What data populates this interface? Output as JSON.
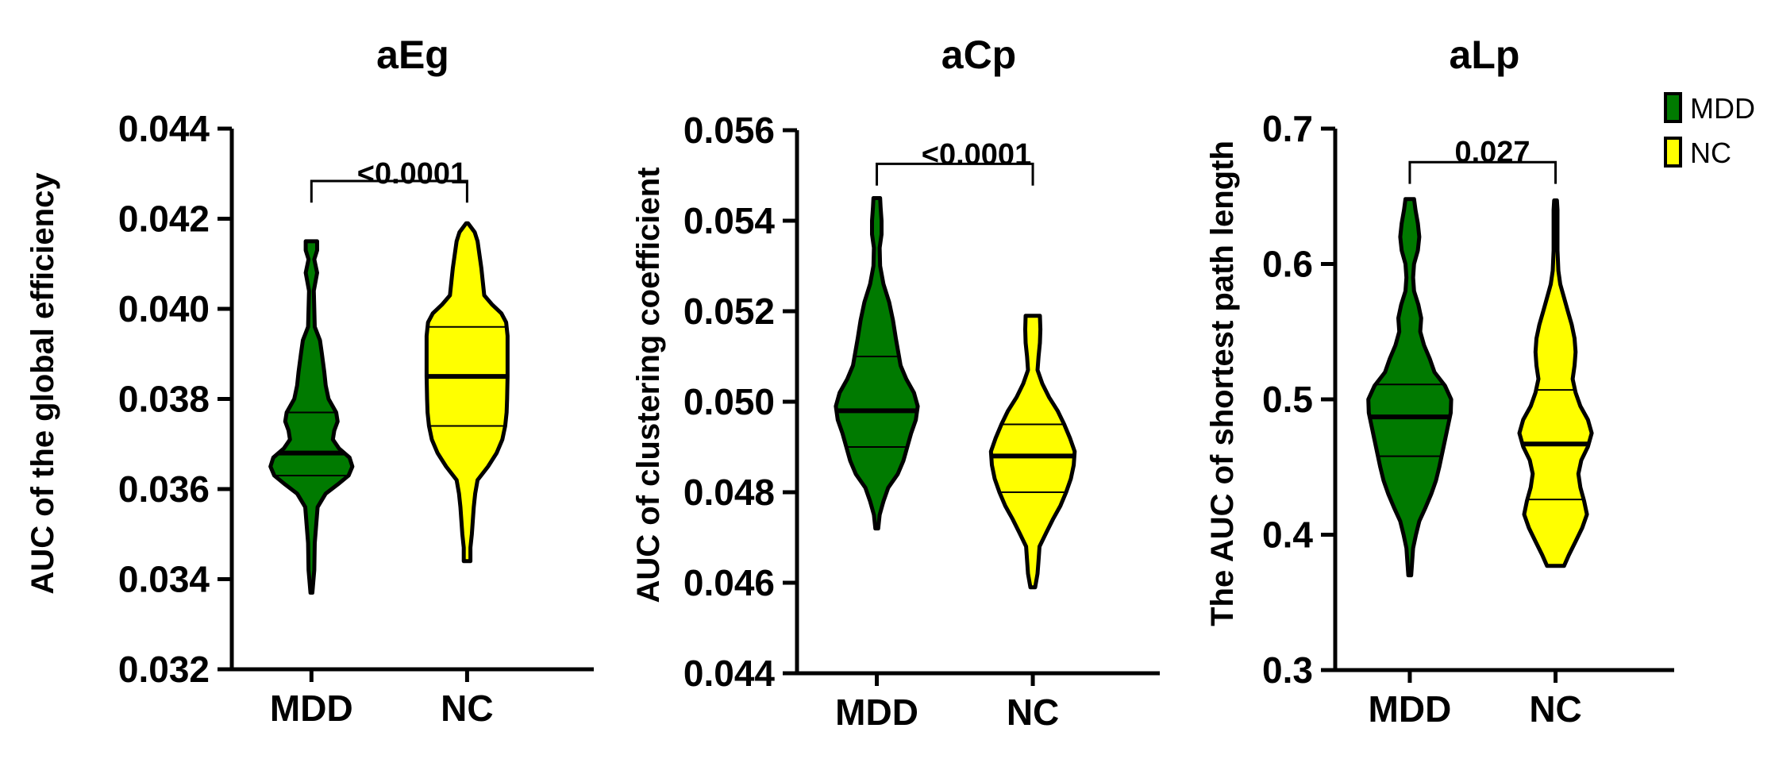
{
  "legend": [
    {
      "label": "MDD",
      "color": "#007a00"
    },
    {
      "label": "NC",
      "color": "#ffff00"
    }
  ],
  "chart_data": [
    {
      "type": "violin",
      "title": "aEg",
      "ylabel": "AUC of the global efficiency",
      "ylim": [
        0.032,
        0.044
      ],
      "yticks": [
        "0.032",
        "0.034",
        "0.036",
        "0.038",
        "0.040",
        "0.042",
        "0.044"
      ],
      "categories": [
        "MDD",
        "NC"
      ],
      "pvalue": "<0.0001",
      "series": [
        {
          "name": "MDD",
          "color": "#007a00",
          "min": 0.0337,
          "max": 0.0415,
          "median": 0.0368,
          "q1": 0.0363,
          "q3": 0.0377,
          "density": [
            [
              0.0337,
              0.02
            ],
            [
              0.0342,
              0.06
            ],
            [
              0.0348,
              0.07
            ],
            [
              0.0352,
              0.1
            ],
            [
              0.0356,
              0.13
            ],
            [
              0.0359,
              0.3
            ],
            [
              0.0361,
              0.55
            ],
            [
              0.0363,
              0.78
            ],
            [
              0.0365,
              0.86
            ],
            [
              0.0367,
              0.8
            ],
            [
              0.0369,
              0.58
            ],
            [
              0.0371,
              0.45
            ],
            [
              0.0373,
              0.48
            ],
            [
              0.0375,
              0.55
            ],
            [
              0.0377,
              0.52
            ],
            [
              0.038,
              0.36
            ],
            [
              0.0383,
              0.3
            ],
            [
              0.0386,
              0.27
            ],
            [
              0.039,
              0.22
            ],
            [
              0.0393,
              0.18
            ],
            [
              0.0396,
              0.07
            ],
            [
              0.04,
              0.06
            ],
            [
              0.0404,
              0.05
            ],
            [
              0.0408,
              0.12
            ],
            [
              0.0411,
              0.06
            ],
            [
              0.0413,
              0.12
            ],
            [
              0.0415,
              0.12
            ]
          ]
        },
        {
          "name": "NC",
          "color": "#ffff00",
          "min": 0.0344,
          "max": 0.0419,
          "median": 0.0385,
          "q1": 0.0374,
          "q3": 0.0396,
          "density": [
            [
              0.0344,
              0.07
            ],
            [
              0.0347,
              0.07
            ],
            [
              0.035,
              0.1
            ],
            [
              0.0353,
              0.12
            ],
            [
              0.0356,
              0.14
            ],
            [
              0.0359,
              0.17
            ],
            [
              0.0362,
              0.22
            ],
            [
              0.0365,
              0.44
            ],
            [
              0.0368,
              0.62
            ],
            [
              0.0371,
              0.74
            ],
            [
              0.0374,
              0.8
            ],
            [
              0.0377,
              0.83
            ],
            [
              0.038,
              0.84
            ],
            [
              0.0385,
              0.85
            ],
            [
              0.039,
              0.85
            ],
            [
              0.0394,
              0.85
            ],
            [
              0.0397,
              0.82
            ],
            [
              0.0399,
              0.72
            ],
            [
              0.0401,
              0.52
            ],
            [
              0.0403,
              0.36
            ],
            [
              0.0406,
              0.33
            ],
            [
              0.0409,
              0.3
            ],
            [
              0.0412,
              0.26
            ],
            [
              0.0415,
              0.22
            ],
            [
              0.0417,
              0.16
            ],
            [
              0.0419,
              0.02
            ]
          ]
        }
      ]
    },
    {
      "type": "violin",
      "title": "aCp",
      "ylabel": "AUC of  clustering coefficient",
      "ylim": [
        0.044,
        0.056
      ],
      "yticks": [
        "0.044",
        "0.046",
        "0.048",
        "0.050",
        "0.052",
        "0.054",
        "0.056"
      ],
      "categories": [
        "MDD",
        "NC"
      ],
      "pvalue": "<0.0001",
      "series": [
        {
          "name": "MDD",
          "color": "#007a00",
          "min": 0.0472,
          "max": 0.0545,
          "median": 0.0498,
          "q1": 0.049,
          "q3": 0.051,
          "density": [
            [
              0.0472,
              0.03
            ],
            [
              0.0475,
              0.06
            ],
            [
              0.0478,
              0.14
            ],
            [
              0.0481,
              0.24
            ],
            [
              0.0484,
              0.44
            ],
            [
              0.0487,
              0.56
            ],
            [
              0.049,
              0.64
            ],
            [
              0.0493,
              0.72
            ],
            [
              0.0496,
              0.82
            ],
            [
              0.0499,
              0.86
            ],
            [
              0.0502,
              0.78
            ],
            [
              0.0505,
              0.62
            ],
            [
              0.0508,
              0.5
            ],
            [
              0.0511,
              0.45
            ],
            [
              0.0514,
              0.4
            ],
            [
              0.0518,
              0.34
            ],
            [
              0.0522,
              0.26
            ],
            [
              0.0526,
              0.14
            ],
            [
              0.053,
              0.07
            ],
            [
              0.0534,
              0.06
            ],
            [
              0.0537,
              0.1
            ],
            [
              0.054,
              0.1
            ],
            [
              0.0543,
              0.08
            ],
            [
              0.0545,
              0.07
            ]
          ]
        },
        {
          "name": "NC",
          "color": "#ffff00",
          "min": 0.0459,
          "max": 0.0519,
          "median": 0.0488,
          "q1": 0.048,
          "q3": 0.0495,
          "density": [
            [
              0.0459,
              0.05
            ],
            [
              0.0462,
              0.1
            ],
            [
              0.0465,
              0.12
            ],
            [
              0.0468,
              0.14
            ],
            [
              0.0471,
              0.28
            ],
            [
              0.0474,
              0.42
            ],
            [
              0.0477,
              0.58
            ],
            [
              0.048,
              0.7
            ],
            [
              0.0483,
              0.8
            ],
            [
              0.0486,
              0.86
            ],
            [
              0.0489,
              0.88
            ],
            [
              0.0492,
              0.78
            ],
            [
              0.0495,
              0.66
            ],
            [
              0.0498,
              0.52
            ],
            [
              0.0501,
              0.34
            ],
            [
              0.0504,
              0.2
            ],
            [
              0.0507,
              0.1
            ],
            [
              0.051,
              0.12
            ],
            [
              0.0513,
              0.15
            ],
            [
              0.0516,
              0.16
            ],
            [
              0.0519,
              0.15
            ]
          ]
        }
      ]
    },
    {
      "type": "violin",
      "title": "aLp",
      "ylabel": "The AUC of shortest path length",
      "ylim": [
        0.3,
        0.7
      ],
      "yticks": [
        "0.3",
        "0.4",
        "0.5",
        "0.6",
        "0.7"
      ],
      "categories": [
        "MDD",
        "NC"
      ],
      "pvalue": "0.027",
      "series": [
        {
          "name": "MDD",
          "color": "#007a00",
          "min": 0.37,
          "max": 0.648,
          "median": 0.487,
          "q1": 0.458,
          "q3": 0.511,
          "density": [
            [
              0.37,
              0.03
            ],
            [
              0.38,
              0.05
            ],
            [
              0.39,
              0.07
            ],
            [
              0.4,
              0.13
            ],
            [
              0.41,
              0.2
            ],
            [
              0.42,
              0.33
            ],
            [
              0.43,
              0.45
            ],
            [
              0.44,
              0.55
            ],
            [
              0.45,
              0.62
            ],
            [
              0.46,
              0.68
            ],
            [
              0.47,
              0.74
            ],
            [
              0.48,
              0.8
            ],
            [
              0.49,
              0.86
            ],
            [
              0.5,
              0.87
            ],
            [
              0.51,
              0.74
            ],
            [
              0.52,
              0.52
            ],
            [
              0.53,
              0.42
            ],
            [
              0.54,
              0.3
            ],
            [
              0.55,
              0.22
            ],
            [
              0.56,
              0.24
            ],
            [
              0.57,
              0.18
            ],
            [
              0.58,
              0.09
            ],
            [
              0.59,
              0.07
            ],
            [
              0.6,
              0.09
            ],
            [
              0.61,
              0.17
            ],
            [
              0.62,
              0.2
            ],
            [
              0.63,
              0.17
            ],
            [
              0.64,
              0.12
            ],
            [
              0.648,
              0.09
            ]
          ]
        },
        {
          "name": "NC",
          "color": "#ffff00",
          "min": 0.377,
          "max": 0.647,
          "median": 0.467,
          "q1": 0.426,
          "q3": 0.507,
          "density": [
            [
              0.377,
              0.18
            ],
            [
              0.385,
              0.28
            ],
            [
              0.395,
              0.42
            ],
            [
              0.405,
              0.56
            ],
            [
              0.415,
              0.66
            ],
            [
              0.425,
              0.6
            ],
            [
              0.435,
              0.52
            ],
            [
              0.445,
              0.48
            ],
            [
              0.455,
              0.54
            ],
            [
              0.465,
              0.68
            ],
            [
              0.475,
              0.76
            ],
            [
              0.485,
              0.68
            ],
            [
              0.495,
              0.52
            ],
            [
              0.505,
              0.42
            ],
            [
              0.515,
              0.36
            ],
            [
              0.525,
              0.4
            ],
            [
              0.535,
              0.42
            ],
            [
              0.545,
              0.4
            ],
            [
              0.555,
              0.34
            ],
            [
              0.565,
              0.26
            ],
            [
              0.575,
              0.18
            ],
            [
              0.585,
              0.1
            ],
            [
              0.595,
              0.06
            ],
            [
              0.61,
              0.04
            ],
            [
              0.625,
              0.04
            ],
            [
              0.64,
              0.04
            ],
            [
              0.647,
              0.03
            ]
          ]
        }
      ]
    }
  ]
}
